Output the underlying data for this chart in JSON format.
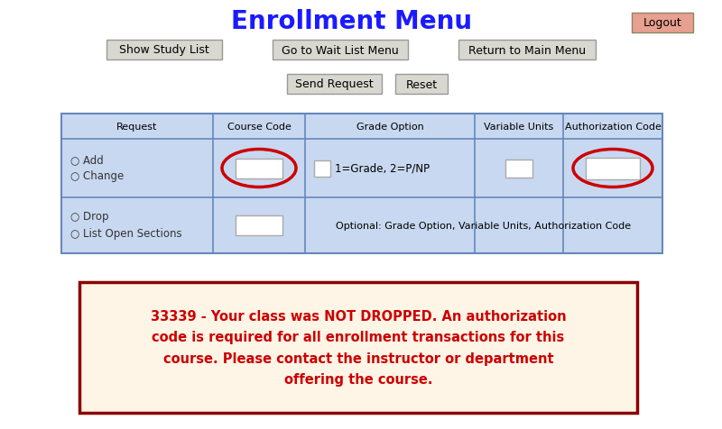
{
  "title": "Enrollment Menu",
  "title_color": "#1a1aff",
  "title_fontsize": 20,
  "bg_color": "#ffffff",
  "logout_label": "Logout",
  "logout_bg": "#e8a090",
  "btn1": "Show Study List",
  "btn2": "Go to Wait List Menu",
  "btn3": "Return to Main Menu",
  "btn4": "Send Request",
  "btn5": "Reset",
  "table_headers": [
    "Request",
    "Course Code",
    "Grade Option",
    "Variable Units",
    "Authorization Code"
  ],
  "table_bg": "#c8d8f0",
  "table_border": "#6688bb",
  "row1_labels_a": "○ Add",
  "row1_labels_b": "○ Change",
  "row2_labels_a": "○ Drop",
  "row2_labels_b": "○ List Open Sections",
  "grade_option_text": "1=Grade, 2=P/NP",
  "optional_text": "Optional: Grade Option, Variable Units, Authorization Code",
  "circle_color": "#cc0000",
  "message_text": "33339 - Your class was NOT DROPPED. An authorization\ncode is required for all enrollment transactions for this\ncourse. Please contact the instructor or department\noffering the course.",
  "message_bg": "#fff5e6",
  "message_border": "#8b0000",
  "message_color": "#cc0000",
  "btn_bg": "#d8d8d0",
  "btn_border": "#999999"
}
